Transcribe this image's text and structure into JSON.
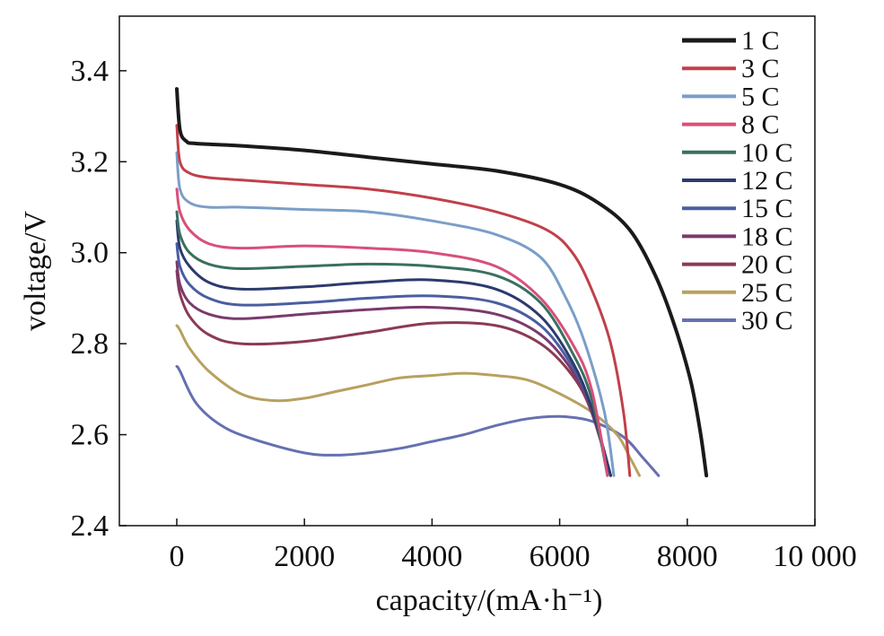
{
  "chart_data": {
    "type": "line",
    "xlabel": "capacity/(mA·h⁻¹)",
    "ylabel": "voltage/V",
    "xlim": [
      -900,
      10000
    ],
    "ylim": [
      2.4,
      3.52
    ],
    "x_ticks": [
      {
        "value": 0,
        "label": "0"
      },
      {
        "value": 2000,
        "label": "2000"
      },
      {
        "value": 4000,
        "label": "4000"
      },
      {
        "value": 6000,
        "label": "6000"
      },
      {
        "value": 8000,
        "label": "8000"
      },
      {
        "value": 10000,
        "label": "10 000"
      }
    ],
    "y_ticks": [
      {
        "value": 2.4,
        "label": "2.4"
      },
      {
        "value": 2.6,
        "label": "2.6"
      },
      {
        "value": 2.8,
        "label": "2.8"
      },
      {
        "value": 3.0,
        "label": "3.0"
      },
      {
        "value": 3.2,
        "label": "3.2"
      },
      {
        "value": 3.4,
        "label": "3.4"
      }
    ],
    "legend_position": "top-right",
    "series": [
      {
        "name": "1 C",
        "color": "#1a1a1a",
        "points": [
          [
            0,
            3.36
          ],
          [
            50,
            3.27
          ],
          [
            150,
            3.245
          ],
          [
            300,
            3.24
          ],
          [
            1000,
            3.235
          ],
          [
            2000,
            3.225
          ],
          [
            3000,
            3.21
          ],
          [
            4000,
            3.195
          ],
          [
            5000,
            3.18
          ],
          [
            6000,
            3.15
          ],
          [
            6600,
            3.11
          ],
          [
            7100,
            3.05
          ],
          [
            7500,
            2.95
          ],
          [
            7800,
            2.84
          ],
          [
            8050,
            2.72
          ],
          [
            8200,
            2.61
          ],
          [
            8300,
            2.51
          ]
        ]
      },
      {
        "name": "3 C",
        "color": "#c0404a",
        "points": [
          [
            0,
            3.28
          ],
          [
            50,
            3.2
          ],
          [
            200,
            3.175
          ],
          [
            500,
            3.165
          ],
          [
            1000,
            3.16
          ],
          [
            2000,
            3.15
          ],
          [
            3000,
            3.14
          ],
          [
            4000,
            3.12
          ],
          [
            5000,
            3.09
          ],
          [
            5800,
            3.05
          ],
          [
            6200,
            3.0
          ],
          [
            6500,
            2.92
          ],
          [
            6800,
            2.8
          ],
          [
            7000,
            2.65
          ],
          [
            7100,
            2.51
          ]
        ]
      },
      {
        "name": "5 C",
        "color": "#7a9ec8",
        "points": [
          [
            0,
            3.22
          ],
          [
            50,
            3.14
          ],
          [
            200,
            3.11
          ],
          [
            500,
            3.1
          ],
          [
            1000,
            3.1
          ],
          [
            2000,
            3.095
          ],
          [
            3000,
            3.09
          ],
          [
            4000,
            3.07
          ],
          [
            5000,
            3.04
          ],
          [
            5700,
            2.99
          ],
          [
            6100,
            2.9
          ],
          [
            6400,
            2.8
          ],
          [
            6700,
            2.65
          ],
          [
            6850,
            2.51
          ]
        ]
      },
      {
        "name": "8 C",
        "color": "#d8507a",
        "points": [
          [
            0,
            3.14
          ],
          [
            50,
            3.09
          ],
          [
            200,
            3.05
          ],
          [
            500,
            3.02
          ],
          [
            1000,
            3.01
          ],
          [
            2000,
            3.015
          ],
          [
            3000,
            3.01
          ],
          [
            4000,
            3.0
          ],
          [
            5000,
            2.97
          ],
          [
            5700,
            2.9
          ],
          [
            6200,
            2.8
          ],
          [
            6500,
            2.7
          ],
          [
            6750,
            2.51
          ]
        ]
      },
      {
        "name": "10 C",
        "color": "#3a7060",
        "points": [
          [
            0,
            3.09
          ],
          [
            50,
            3.04
          ],
          [
            200,
            3.0
          ],
          [
            500,
            2.975
          ],
          [
            1000,
            2.965
          ],
          [
            2000,
            2.97
          ],
          [
            3000,
            2.975
          ],
          [
            4000,
            2.97
          ],
          [
            5000,
            2.95
          ],
          [
            5700,
            2.89
          ],
          [
            6200,
            2.78
          ],
          [
            6500,
            2.68
          ],
          [
            6750,
            2.51
          ]
        ]
      },
      {
        "name": "12 C",
        "color": "#2c3a6e",
        "points": [
          [
            0,
            3.07
          ],
          [
            50,
            3.01
          ],
          [
            200,
            2.97
          ],
          [
            500,
            2.935
          ],
          [
            1000,
            2.92
          ],
          [
            2000,
            2.925
          ],
          [
            3000,
            2.935
          ],
          [
            4000,
            2.94
          ],
          [
            5000,
            2.92
          ],
          [
            5700,
            2.86
          ],
          [
            6200,
            2.76
          ],
          [
            6500,
            2.66
          ],
          [
            6800,
            2.51
          ]
        ]
      },
      {
        "name": "15 C",
        "color": "#4a5ea0",
        "points": [
          [
            0,
            3.02
          ],
          [
            50,
            2.97
          ],
          [
            200,
            2.93
          ],
          [
            500,
            2.9
          ],
          [
            1000,
            2.885
          ],
          [
            2000,
            2.89
          ],
          [
            3000,
            2.9
          ],
          [
            4000,
            2.905
          ],
          [
            5000,
            2.89
          ],
          [
            5700,
            2.84
          ],
          [
            6200,
            2.75
          ],
          [
            6500,
            2.66
          ],
          [
            6800,
            2.51
          ]
        ]
      },
      {
        "name": "18 C",
        "color": "#7a3a6e",
        "points": [
          [
            0,
            2.98
          ],
          [
            50,
            2.93
          ],
          [
            200,
            2.89
          ],
          [
            500,
            2.865
          ],
          [
            1000,
            2.855
          ],
          [
            2000,
            2.865
          ],
          [
            3000,
            2.875
          ],
          [
            4000,
            2.88
          ],
          [
            5000,
            2.865
          ],
          [
            5700,
            2.82
          ],
          [
            6200,
            2.74
          ],
          [
            6500,
            2.65
          ],
          [
            6800,
            2.51
          ]
        ]
      },
      {
        "name": "20 C",
        "color": "#8a3a55",
        "points": [
          [
            0,
            2.96
          ],
          [
            50,
            2.91
          ],
          [
            200,
            2.86
          ],
          [
            500,
            2.82
          ],
          [
            1000,
            2.8
          ],
          [
            2000,
            2.805
          ],
          [
            3000,
            2.825
          ],
          [
            4000,
            2.845
          ],
          [
            5000,
            2.84
          ],
          [
            5700,
            2.8
          ],
          [
            6200,
            2.73
          ],
          [
            6500,
            2.65
          ],
          [
            6800,
            2.51
          ]
        ]
      },
      {
        "name": "25 C",
        "color": "#b8a060",
        "points": [
          [
            0,
            2.84
          ],
          [
            50,
            2.83
          ],
          [
            200,
            2.79
          ],
          [
            500,
            2.74
          ],
          [
            1000,
            2.69
          ],
          [
            1500,
            2.675
          ],
          [
            2000,
            2.68
          ],
          [
            2500,
            2.695
          ],
          [
            3000,
            2.71
          ],
          [
            3500,
            2.725
          ],
          [
            4000,
            2.73
          ],
          [
            4500,
            2.735
          ],
          [
            5000,
            2.73
          ],
          [
            5500,
            2.72
          ],
          [
            6000,
            2.69
          ],
          [
            6500,
            2.65
          ],
          [
            6900,
            2.6
          ],
          [
            7100,
            2.55
          ],
          [
            7250,
            2.51
          ]
        ]
      },
      {
        "name": "30 C",
        "color": "#6670b0",
        "points": [
          [
            0,
            2.75
          ],
          [
            50,
            2.74
          ],
          [
            300,
            2.67
          ],
          [
            700,
            2.62
          ],
          [
            1200,
            2.59
          ],
          [
            2000,
            2.56
          ],
          [
            2500,
            2.555
          ],
          [
            3000,
            2.56
          ],
          [
            3500,
            2.57
          ],
          [
            4000,
            2.585
          ],
          [
            4500,
            2.6
          ],
          [
            5000,
            2.62
          ],
          [
            5500,
            2.635
          ],
          [
            6000,
            2.64
          ],
          [
            6500,
            2.63
          ],
          [
            7000,
            2.595
          ],
          [
            7300,
            2.55
          ],
          [
            7550,
            2.51
          ]
        ]
      }
    ]
  }
}
